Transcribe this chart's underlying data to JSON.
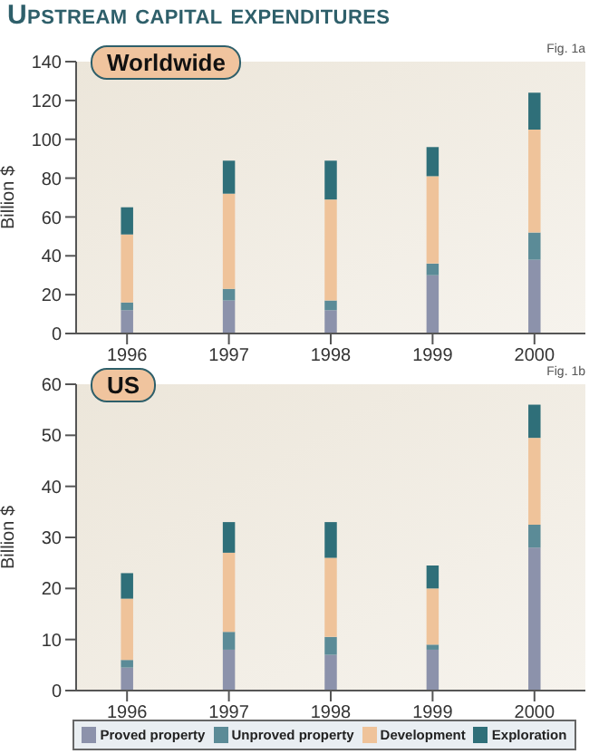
{
  "chart_data": [
    {
      "type": "bar",
      "title": "Upstream capital expenditures",
      "subtitle": "Worldwide",
      "ylabel": "Billion $",
      "annotations": [
        "Fig. 1a"
      ],
      "categories": [
        "1996",
        "1997",
        "1998",
        "1999",
        "2000"
      ],
      "stacked": true,
      "ylim": [
        0,
        140
      ],
      "yticks": [
        0,
        20,
        40,
        60,
        80,
        100,
        120,
        140
      ],
      "grid": false,
      "legend": false,
      "series": [
        {
          "color": "#8c92ab",
          "values": [
            12,
            17,
            12,
            30,
            38
          ]
        },
        {
          "color": "#5b8b97",
          "values": [
            4,
            6,
            5,
            6,
            14
          ]
        },
        {
          "color": "#efc39a",
          "values": [
            35,
            49,
            52,
            45,
            53
          ]
        },
        {
          "color": "#2f6f79",
          "values": [
            14,
            17,
            20,
            15,
            19
          ]
        }
      ]
    },
    {
      "type": "bar",
      "subtitle": "US",
      "ylabel": "Billion $",
      "annotations": [
        "Fig. 1b"
      ],
      "categories": [
        "1996",
        "1997",
        "1998",
        "1999",
        "2000"
      ],
      "stacked": true,
      "ylim": [
        0,
        60
      ],
      "yticks": [
        0,
        10,
        20,
        30,
        40,
        50,
        60
      ],
      "grid": false,
      "legend": "bottom",
      "series": [
        {
          "name": "Proved property",
          "color": "#8c92ab",
          "values": [
            4.5,
            8,
            7,
            8,
            28
          ]
        },
        {
          "name": "Unproved property",
          "color": "#5b8b97",
          "values": [
            1.5,
            3.5,
            3.5,
            1,
            4.5
          ]
        },
        {
          "name": "Development",
          "color": "#efc39a",
          "values": [
            12,
            15.5,
            15.5,
            11,
            17
          ]
        },
        {
          "name": "Exploration",
          "color": "#2f6f79",
          "values": [
            5,
            6,
            7,
            4.5,
            6.5
          ]
        }
      ]
    }
  ]
}
